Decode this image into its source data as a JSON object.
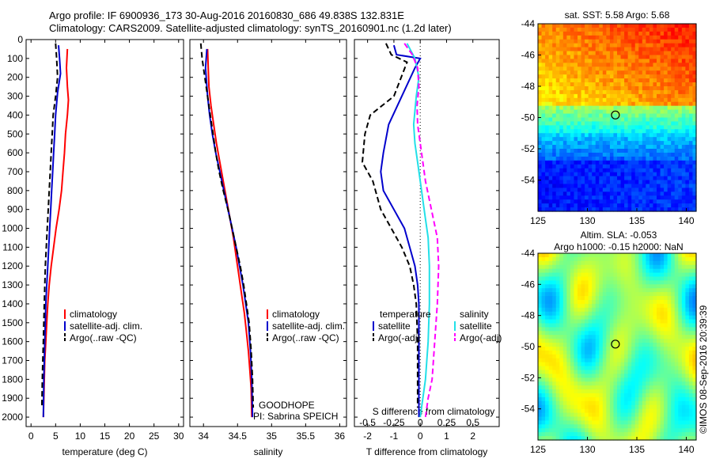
{
  "header": {
    "line1": "Argo profile: IF 6900936_173 30-Aug-2016 20160830_686 49.838S 132.831E",
    "line2": "Climatology: CARS2009. Satellite-adjusted climatology: synTS_20160901.nc (1.2d later)"
  },
  "colors": {
    "climatology": "#ff0000",
    "satellite": "#0000cc",
    "argo": "#000000",
    "sal_satellite": "#22e0e8",
    "sal_argo": "#ff00ff"
  },
  "chart_data": [
    {
      "type": "line",
      "xlabel": "temperature (deg C)",
      "ylabel": "",
      "xlim": [
        -1,
        31
      ],
      "ylim": [
        2050,
        0
      ],
      "xticks": [
        "0",
        "5",
        "10",
        "15",
        "20",
        "25",
        "30"
      ],
      "yticks": [
        "0",
        "100",
        "200",
        "300",
        "400",
        "500",
        "600",
        "700",
        "800",
        "900",
        "1000",
        "1100",
        "1200",
        "1300",
        "1400",
        "1500",
        "1600",
        "1700",
        "1800",
        "1900",
        "2000"
      ],
      "legend": [
        "climatology",
        "satellite-adj. clim.",
        "Argo(..raw -QC)"
      ],
      "legend_position": "lower-center",
      "series": [
        {
          "name": "climatology",
          "style": "solid",
          "x": [
            7.4,
            7.3,
            7.2,
            7.4,
            7.6,
            7.4,
            7.0,
            6.8,
            6.5,
            6.2,
            5.7,
            5.1,
            4.6,
            4.1,
            3.7,
            3.4,
            3.2,
            3.0,
            2.8,
            2.7,
            2.6,
            2.5
          ],
          "y": [
            50,
            100,
            150,
            250,
            320,
            400,
            500,
            600,
            700,
            800,
            900,
            1000,
            1100,
            1200,
            1300,
            1400,
            1500,
            1600,
            1700,
            1800,
            1900,
            2000
          ]
        },
        {
          "name": "satellite-adj. clim.",
          "style": "solid",
          "x": [
            5.6,
            5.8,
            6.0,
            5.4,
            5.0,
            4.8,
            4.6,
            4.4,
            4.2,
            4.0,
            3.8,
            3.6,
            3.4,
            3.2,
            3.0,
            2.9,
            2.8,
            2.7,
            2.6,
            2.5
          ],
          "y": [
            30,
            100,
            180,
            280,
            400,
            500,
            600,
            700,
            800,
            900,
            1000,
            1100,
            1200,
            1300,
            1400,
            1500,
            1600,
            1700,
            1800,
            2000
          ]
        },
        {
          "name": "Argo(..raw -QC)",
          "style": "dashed",
          "x": [
            5.0,
            5.2,
            5.4,
            5.0,
            4.5,
            4.3,
            4.1,
            3.9,
            3.7,
            3.5,
            3.3,
            3.1,
            2.9,
            2.7,
            2.5,
            2.4,
            2.3,
            2.2
          ],
          "y": [
            20,
            100,
            200,
            300,
            400,
            500,
            600,
            700,
            800,
            900,
            1000,
            1100,
            1200,
            1400,
            1600,
            1700,
            1800,
            1950
          ]
        }
      ]
    },
    {
      "type": "line",
      "xlabel": "salinity",
      "xlim": [
        33.8,
        36.1
      ],
      "ylim": [
        2050,
        0
      ],
      "xticks": [
        "34",
        "34.5",
        "35",
        "35.5",
        "36"
      ],
      "legend": [
        "climatology",
        "satellite-adj. clim.",
        "Argo(..raw -QC)"
      ],
      "legend_position": "lower-right",
      "annotations": [
        "GOODHOPE",
        "PI: Sabrina SPEICH"
      ],
      "series": [
        {
          "name": "climatology",
          "style": "solid",
          "x": [
            34.06,
            34.07,
            34.08,
            34.11,
            34.15,
            34.19,
            34.24,
            34.29,
            34.34,
            34.39,
            34.44,
            34.48,
            34.52,
            34.56,
            34.6,
            34.63,
            34.66,
            34.68,
            34.7,
            34.71
          ],
          "y": [
            50,
            150,
            250,
            350,
            450,
            550,
            650,
            750,
            850,
            950,
            1050,
            1150,
            1250,
            1350,
            1450,
            1550,
            1650,
            1750,
            1850,
            2000
          ]
        },
        {
          "name": "satellite-adj. clim.",
          "style": "solid",
          "x": [
            34.05,
            34.03,
            34.06,
            34.09,
            34.13,
            34.18,
            34.24,
            34.3,
            34.36,
            34.42,
            34.48,
            34.53,
            34.58,
            34.62,
            34.66,
            34.69,
            34.71,
            34.72
          ],
          "y": [
            50,
            150,
            300,
            400,
            500,
            600,
            700,
            800,
            900,
            1000,
            1100,
            1200,
            1300,
            1400,
            1500,
            1650,
            1800,
            2000
          ]
        },
        {
          "name": "Argo(..raw -QC)",
          "style": "dashed",
          "x": [
            33.96,
            33.98,
            34.02,
            34.06,
            34.1,
            34.14,
            34.18,
            34.23,
            34.29,
            34.36,
            34.42,
            34.48,
            34.54,
            34.59,
            34.63,
            34.67,
            34.7,
            34.72,
            34.73
          ],
          "y": [
            20,
            100,
            200,
            300,
            400,
            500,
            600,
            700,
            800,
            900,
            1000,
            1100,
            1200,
            1300,
            1400,
            1500,
            1650,
            1800,
            1950
          ]
        }
      ]
    },
    {
      "type": "line",
      "xlabel": "T difference from climatology",
      "top_xlabel": "S difference from climatology",
      "xlim": [
        -2.5,
        3.0
      ],
      "ylim": [
        2050,
        0
      ],
      "xticks": [
        "-2",
        "-1",
        "0",
        "1",
        "2"
      ],
      "top_xticks": [
        "-0.5",
        "-0.25",
        "0",
        "0.25",
        "0.5"
      ],
      "legend_left_title": "temperature",
      "legend_right_title": "salinity",
      "legend_left": [
        "satellite",
        "Argo(-adj)"
      ],
      "legend_right": [
        "satellite",
        "Argo(-adj)"
      ],
      "series": [
        {
          "name": "temperature satellite",
          "style": "solid",
          "x": [
            -1.0,
            -0.9,
            0.0,
            -0.2,
            -0.7,
            -1.2,
            -1.4,
            -1.5,
            -1.4,
            -1.0,
            -0.6,
            -0.4,
            -0.2,
            -0.1,
            -0.05,
            -0.05,
            -0.05,
            -0.05
          ],
          "y": [
            30,
            80,
            100,
            150,
            300,
            450,
            600,
            700,
            800,
            900,
            1000,
            1100,
            1200,
            1300,
            1400,
            1600,
            1800,
            2000
          ]
        },
        {
          "name": "temperature Argo(-adj)",
          "style": "dashed",
          "x": [
            -1.3,
            -1.1,
            -0.5,
            -1.0,
            -1.9,
            -2.1,
            -2.2,
            -1.8,
            -1.5,
            -1.1,
            -0.7,
            -0.4,
            -0.25,
            -0.15,
            -0.1,
            -0.1,
            -0.1
          ],
          "y": [
            20,
            80,
            120,
            300,
            400,
            500,
            650,
            750,
            900,
            1000,
            1100,
            1200,
            1300,
            1400,
            1600,
            1800,
            1950
          ]
        },
        {
          "name": "salinity satellite",
          "style": "solid",
          "x": [
            -0.5,
            -0.2,
            -0.05,
            -0.15,
            -0.25,
            -0.2,
            -0.1,
            0.0,
            0.1,
            0.2,
            0.3,
            0.35,
            0.35,
            0.3,
            0.2,
            0.1,
            0.0
          ],
          "y": [
            20,
            100,
            200,
            300,
            450,
            550,
            650,
            750,
            850,
            950,
            1050,
            1200,
            1400,
            1600,
            1800,
            1900,
            2000
          ]
        },
        {
          "name": "salinity Argo(-adj)",
          "style": "dashed",
          "x": [
            -0.6,
            -0.3,
            -0.1,
            -0.05,
            -0.12,
            -0.1,
            0.0,
            0.1,
            0.2,
            0.35,
            0.5,
            0.65,
            0.7,
            0.65,
            0.55,
            0.45,
            0.3,
            0.2
          ],
          "y": [
            20,
            80,
            150,
            250,
            350,
            450,
            550,
            650,
            750,
            850,
            950,
            1050,
            1200,
            1400,
            1600,
            1800,
            1900,
            2000
          ]
        }
      ]
    },
    {
      "type": "heatmap",
      "title": "sat. SST: 5.58 Argo: 5.68",
      "xlim": [
        125,
        141
      ],
      "ylim": [
        -56,
        -44
      ],
      "xticks": [
        "125",
        "130",
        "135",
        "140"
      ],
      "yticks": [
        "-44",
        "-46",
        "-48",
        "-50",
        "-52",
        "-54"
      ],
      "marker": {
        "lon": 132.831,
        "lat": -49.838
      }
    },
    {
      "type": "heatmap",
      "title_line1": "Altim. SLA: -0.053",
      "title_line2": "Argo h1000: -0.15 h2000: NaN",
      "xlim": [
        125,
        141
      ],
      "ylim": [
        -56,
        -44
      ],
      "xticks": [
        "125",
        "130",
        "135",
        "140"
      ],
      "yticks": [
        "-44",
        "-46",
        "-48",
        "-50",
        "-52",
        "-54"
      ],
      "marker": {
        "lon": 132.831,
        "lat": -49.838
      }
    }
  ],
  "watermark": "©IMOS 08-Sep-2016 20:39:39"
}
